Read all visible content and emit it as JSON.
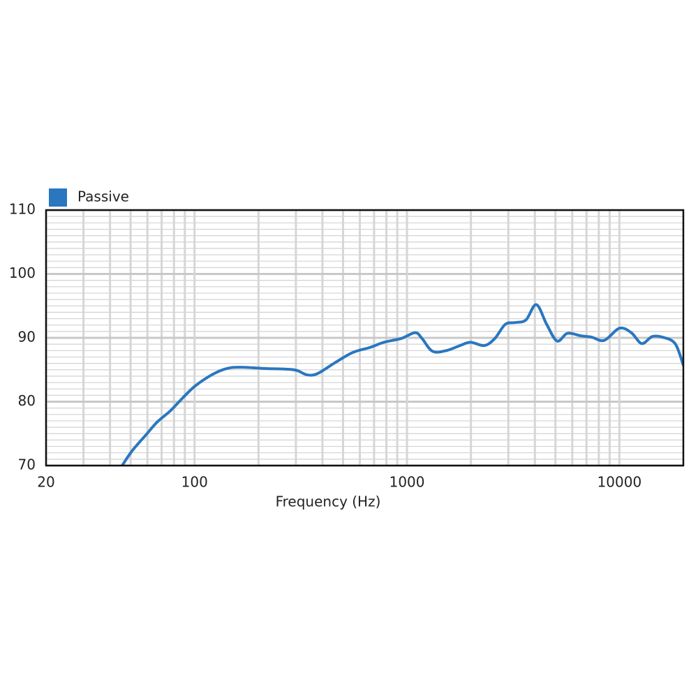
{
  "chart_data": {
    "type": "line",
    "legend": "top-left",
    "x_label": "Frequency (Hz)",
    "log_x": true,
    "grid": true,
    "xlim": [
      20,
      20000
    ],
    "ylim": [
      70,
      110
    ],
    "xticks": [
      20,
      100,
      1000,
      10000
    ],
    "yticks": [
      70,
      80,
      90,
      100,
      110
    ],
    "x_minor_ticks": [
      30,
      40,
      50,
      60,
      70,
      80,
      90,
      200,
      300,
      400,
      500,
      600,
      700,
      800,
      900,
      2000,
      3000,
      4000,
      5000,
      6000,
      7000,
      8000,
      9000
    ],
    "y_minor_ticks": [
      71,
      72,
      73,
      74,
      75,
      76,
      77,
      78,
      79,
      81,
      82,
      83,
      84,
      85,
      86,
      87,
      88,
      89,
      91,
      92,
      93,
      94,
      95,
      96,
      97,
      98,
      99,
      101,
      102,
      103,
      104,
      105,
      106,
      107,
      108,
      109
    ],
    "x": [
      45.6,
      51.1,
      59.4,
      66.6,
      77.1,
      88,
      101,
      122,
      142,
      165,
      215,
      270,
      303,
      339,
      379,
      458,
      555,
      670,
      778,
      940,
      1093,
      1177,
      1318,
      1531,
      1780,
      1992,
      2315,
      2592,
      2900,
      3246,
      3632,
      4065,
      4548,
      5090,
      5695,
      6620,
      7410,
      8487,
      10000,
      11380,
      12740,
      14260,
      15960,
      18290,
      20000
    ],
    "series": [
      {
        "name": "Passive",
        "color": "#2a77c0",
        "values": [
          70,
          72.4,
          74.9,
          76.8,
          78.6,
          80.6,
          82.5,
          84.3,
          85.2,
          85.4,
          85.2,
          85.1,
          84.9,
          84.2,
          84.4,
          86.1,
          87.7,
          88.5,
          89.3,
          89.9,
          90.8,
          89.9,
          87.9,
          88.0,
          88.8,
          89.3,
          88.8,
          89.9,
          92.1,
          92.4,
          92.8,
          95.2,
          92.1,
          89.5,
          90.7,
          90.3,
          90.1,
          89.6,
          91.5,
          90.8,
          89.1,
          90.2,
          90.1,
          89.1,
          85.7
        ]
      }
    ]
  }
}
